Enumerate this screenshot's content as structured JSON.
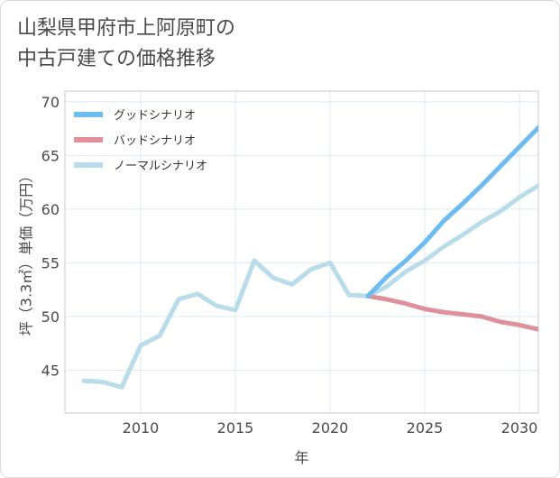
{
  "title": {
    "line1": "山梨県甲府市上阿原町の",
    "line2": "中古戸建ての価格推移"
  },
  "chart_data": {
    "type": "line",
    "xlabel": "年",
    "ylabel": "坪（3.3㎡）単価（万円）",
    "xlim": [
      2006,
      2031
    ],
    "ylim": [
      41,
      71
    ],
    "xticks": [
      2010,
      2015,
      2020,
      2025,
      2030
    ],
    "yticks": [
      45,
      50,
      55,
      60,
      65,
      70
    ],
    "grid": true,
    "legend_position": "top-left",
    "series": [
      {
        "name": "グッドシナリオ",
        "color": "#6cbcf0",
        "x": [
          2022,
          2023,
          2024,
          2025,
          2026,
          2027,
          2028,
          2029,
          2030,
          2031
        ],
        "values": [
          51.9,
          53.7,
          55.2,
          56.9,
          58.9,
          60.5,
          62.2,
          64.0,
          65.8,
          67.6
        ]
      },
      {
        "name": "バッドシナリオ",
        "color": "#e0909a",
        "x": [
          2022,
          2023,
          2024,
          2025,
          2026,
          2027,
          2028,
          2029,
          2030,
          2031
        ],
        "values": [
          51.9,
          51.6,
          51.2,
          50.7,
          50.4,
          50.2,
          50.0,
          49.5,
          49.2,
          48.8
        ]
      },
      {
        "name": "ノーマルシナリオ",
        "color": "#b8dcea",
        "x": [
          2007,
          2008,
          2009,
          2010,
          2011,
          2012,
          2013,
          2014,
          2015,
          2016,
          2017,
          2018,
          2019,
          2020,
          2021,
          2022,
          2023,
          2024,
          2025,
          2026,
          2027,
          2028,
          2029,
          2030,
          2031
        ],
        "values": [
          44.0,
          43.9,
          43.4,
          47.3,
          48.2,
          51.6,
          52.1,
          51.0,
          50.6,
          55.2,
          53.6,
          53.0,
          54.4,
          55.0,
          52.0,
          51.9,
          52.8,
          54.2,
          55.2,
          56.5,
          57.6,
          58.8,
          59.8,
          61.1,
          62.2
        ]
      }
    ]
  }
}
